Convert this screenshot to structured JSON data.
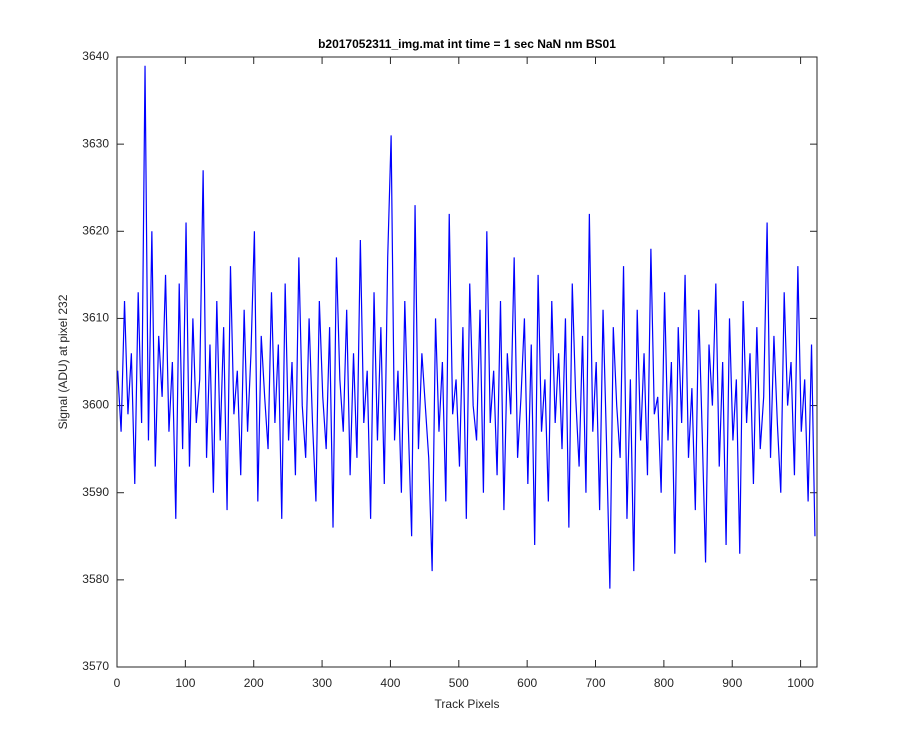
{
  "chart_data": {
    "type": "line",
    "title": "b2017052311_img.mat int time = 1 sec  NaN nm BS01",
    "xlabel": "Track Pixels",
    "ylabel": "Signal (ADU) at pixel 232",
    "xlim": [
      0,
      1024
    ],
    "ylim": [
      3570,
      3640
    ],
    "xticks": [
      0,
      100,
      200,
      300,
      400,
      500,
      600,
      700,
      800,
      900,
      1000
    ],
    "yticks": [
      3570,
      3580,
      3590,
      3600,
      3610,
      3620,
      3630,
      3640
    ],
    "grid": false,
    "series": [
      {
        "color": "#0000ff",
        "x": [
          1,
          6,
          11,
          16,
          21,
          26,
          31,
          36,
          41,
          46,
          51,
          56,
          61,
          66,
          71,
          76,
          81,
          86,
          91,
          96,
          101,
          106,
          111,
          116,
          121,
          126,
          131,
          136,
          141,
          146,
          151,
          156,
          161,
          166,
          171,
          176,
          181,
          186,
          191,
          196,
          201,
          206,
          211,
          216,
          221,
          226,
          231,
          236,
          241,
          246,
          251,
          256,
          261,
          266,
          271,
          276,
          281,
          286,
          291,
          296,
          301,
          306,
          311,
          316,
          321,
          326,
          331,
          336,
          341,
          346,
          351,
          356,
          361,
          366,
          371,
          376,
          381,
          386,
          391,
          396,
          401,
          406,
          411,
          416,
          421,
          426,
          431,
          436,
          441,
          446,
          451,
          456,
          461,
          466,
          471,
          476,
          481,
          486,
          491,
          496,
          501,
          506,
          511,
          516,
          521,
          526,
          531,
          536,
          541,
          546,
          551,
          556,
          561,
          566,
          571,
          576,
          581,
          586,
          591,
          596,
          601,
          606,
          611,
          616,
          621,
          626,
          631,
          636,
          641,
          646,
          651,
          656,
          661,
          666,
          671,
          676,
          681,
          686,
          691,
          696,
          701,
          706,
          711,
          716,
          721,
          726,
          731,
          736,
          741,
          746,
          751,
          756,
          761,
          766,
          771,
          776,
          781,
          786,
          791,
          796,
          801,
          806,
          811,
          816,
          821,
          826,
          831,
          836,
          841,
          846,
          851,
          856,
          861,
          866,
          871,
          876,
          881,
          886,
          891,
          896,
          901,
          906,
          911,
          916,
          921,
          926,
          931,
          936,
          941,
          946,
          951,
          956,
          961,
          966,
          971,
          976,
          981,
          986,
          991,
          996,
          1001,
          1006,
          1011,
          1016,
          1021
        ],
        "values": [
          3604,
          3597,
          3612,
          3599,
          3606,
          3591,
          3613,
          3598,
          3639,
          3596,
          3620,
          3593,
          3608,
          3601,
          3615,
          3597,
          3605,
          3587,
          3614,
          3595,
          3621,
          3593,
          3610,
          3598,
          3603,
          3627,
          3594,
          3607,
          3590,
          3612,
          3596,
          3609,
          3588,
          3616,
          3599,
          3604,
          3592,
          3611,
          3597,
          3606,
          3620,
          3589,
          3608,
          3601,
          3595,
          3613,
          3598,
          3607,
          3587,
          3614,
          3596,
          3605,
          3592,
          3617,
          3600,
          3594,
          3610,
          3598,
          3589,
          3612,
          3601,
          3595,
          3609,
          3586,
          3617,
          3603,
          3597,
          3611,
          3592,
          3606,
          3594,
          3619,
          3598,
          3604,
          3587,
          3613,
          3596,
          3609,
          3591,
          3617,
          3631,
          3596,
          3604,
          3590,
          3612,
          3598,
          3585,
          3623,
          3595,
          3606,
          3600,
          3594,
          3581,
          3610,
          3597,
          3605,
          3589,
          3622,
          3599,
          3603,
          3593,
          3609,
          3587,
          3614,
          3600,
          3596,
          3611,
          3590,
          3620,
          3598,
          3604,
          3592,
          3612,
          3588,
          3606,
          3599,
          3617,
          3594,
          3601,
          3610,
          3591,
          3607,
          3584,
          3615,
          3597,
          3603,
          3589,
          3612,
          3598,
          3606,
          3595,
          3610,
          3586,
          3614,
          3601,
          3593,
          3608,
          3590,
          3622,
          3597,
          3605,
          3588,
          3611,
          3596,
          3579,
          3609,
          3600,
          3594,
          3616,
          3587,
          3603,
          3581,
          3611,
          3596,
          3606,
          3592,
          3618,
          3599,
          3601,
          3590,
          3613,
          3596,
          3605,
          3583,
          3609,
          3598,
          3615,
          3594,
          3602,
          3588,
          3611,
          3597,
          3582,
          3607,
          3600,
          3614,
          3593,
          3605,
          3584,
          3610,
          3596,
          3603,
          3583,
          3612,
          3598,
          3606,
          3591,
          3609,
          3595,
          3601,
          3621,
          3594,
          3608,
          3598,
          3590,
          3613,
          3600,
          3605,
          3592,
          3616,
          3597,
          3603,
          3589,
          3607,
          3585
        ]
      }
    ]
  }
}
